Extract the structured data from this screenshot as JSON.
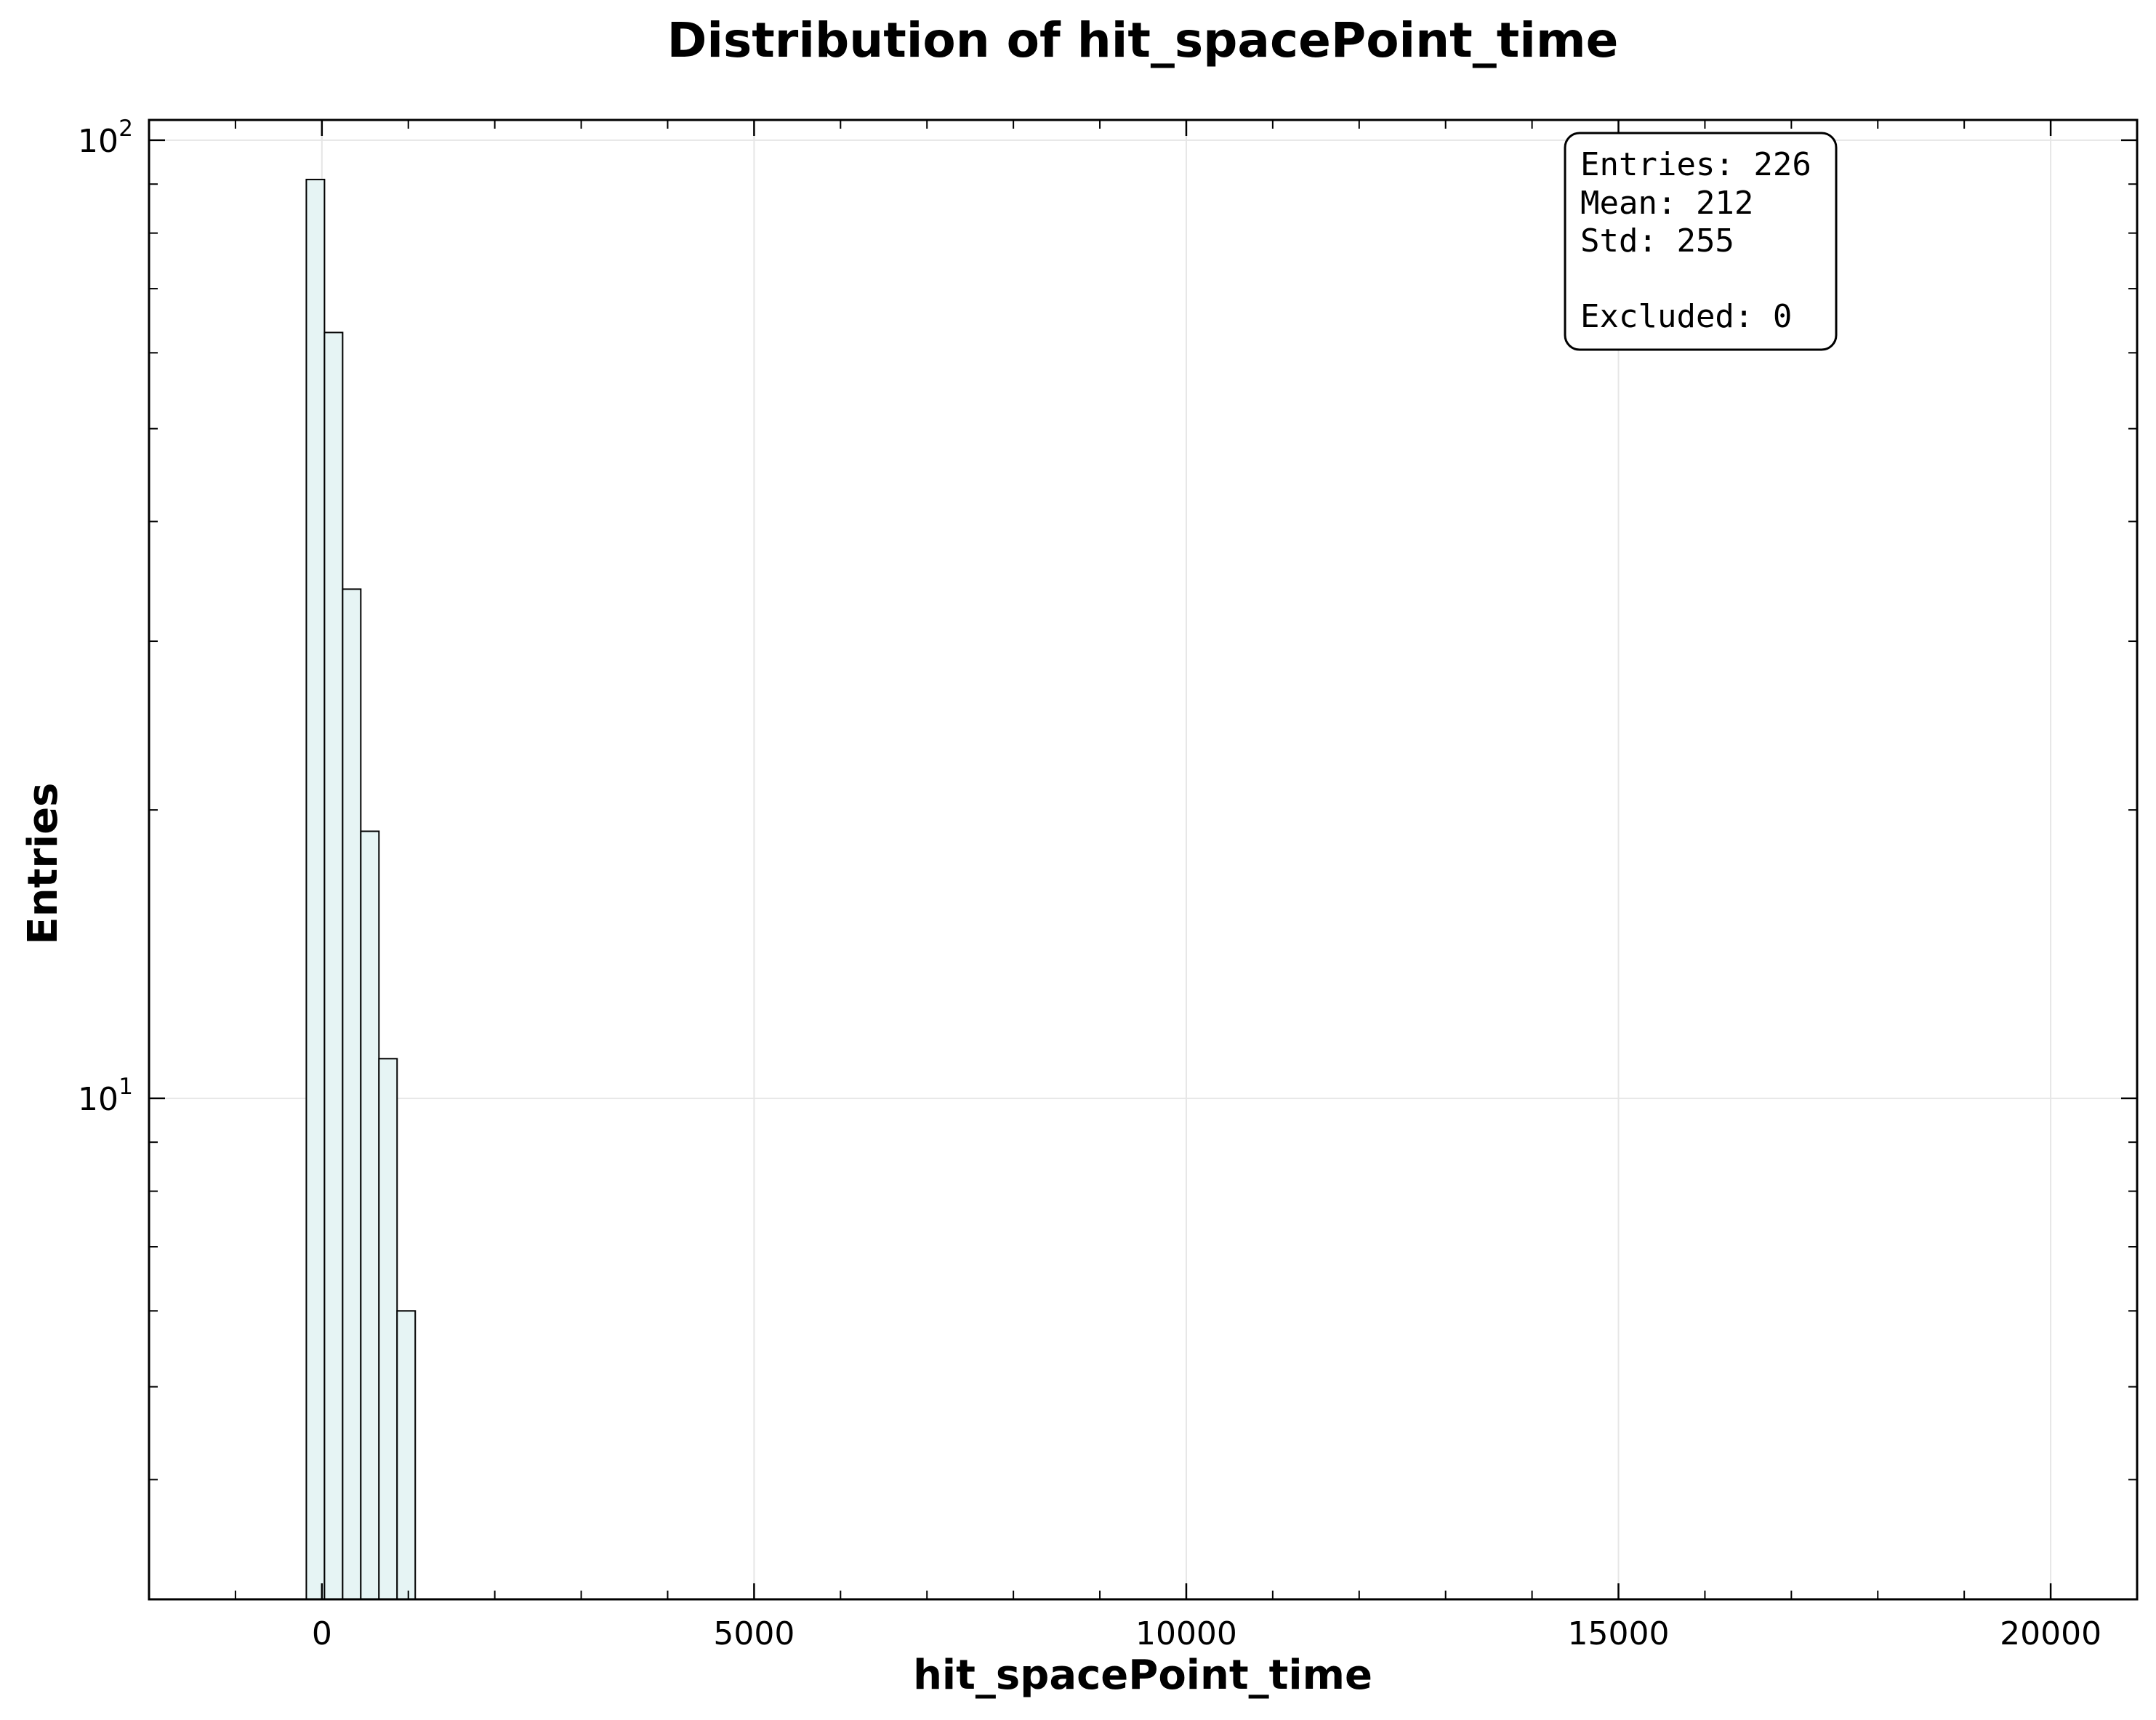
{
  "chart_data": {
    "type": "bar",
    "title": "Distribution of hit_spacePoint_time",
    "xlabel": "hit_spacePoint_time",
    "ylabel": "Entries",
    "x_scale": "linear",
    "y_scale": "log",
    "xlim": [
      -2000,
      21000
    ],
    "ylim": [
      3,
      105
    ],
    "grid": true,
    "legend": "none",
    "bar_color": "#e6f4f4",
    "edge_color": "#000000",
    "x_ticks": [
      {
        "value": 0,
        "label": "0"
      },
      {
        "value": 5000,
        "label": "5000"
      },
      {
        "value": 10000,
        "label": "10000"
      },
      {
        "value": 15000,
        "label": "15000"
      },
      {
        "value": 20000,
        "label": "20000"
      }
    ],
    "y_ticks": [
      {
        "value": 10,
        "base": "10",
        "exp": "1"
      },
      {
        "value": 100,
        "base": "10",
        "exp": "2"
      }
    ],
    "bins": [
      {
        "x0": -180,
        "x1": 30,
        "count": 91
      },
      {
        "x0": 30,
        "x1": 240,
        "count": 63
      },
      {
        "x0": 240,
        "x1": 450,
        "count": 34
      },
      {
        "x0": 450,
        "x1": 660,
        "count": 19
      },
      {
        "x0": 660,
        "x1": 870,
        "count": 11
      },
      {
        "x0": 870,
        "x1": 1080,
        "count": 6
      }
    ],
    "stats_box": {
      "position": "top-right",
      "lines": [
        "Entries: 226",
        "Mean: 212",
        "Std: 255",
        "",
        "Excluded: 0"
      ]
    }
  }
}
